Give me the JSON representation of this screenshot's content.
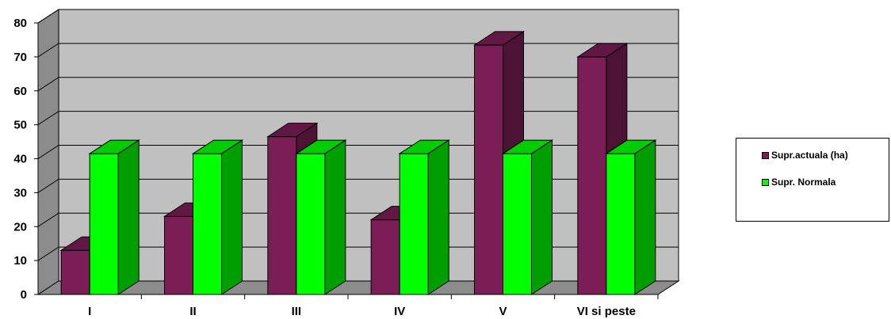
{
  "chart_data": {
    "type": "bar",
    "title": "",
    "xlabel": "",
    "ylabel": "",
    "categories": [
      "I",
      "II",
      "III",
      "IV",
      "V",
      "VI si peste"
    ],
    "series": [
      {
        "name": "Supr.actuala (ha)",
        "values": [
          13,
          23,
          46.5,
          22,
          73.5,
          70
        ],
        "color": "#7b1e55"
      },
      {
        "name": "Supr. Normala",
        "values": [
          41.5,
          41.5,
          41.5,
          41.5,
          41.5,
          41.5
        ],
        "color": "#00ff00"
      }
    ],
    "ylim": [
      0,
      80
    ],
    "yticks": [
      "0",
      "10",
      "20",
      "30",
      "40",
      "50",
      "60",
      "70",
      "80"
    ],
    "grid": true,
    "style": "3d-clustered-column",
    "legend_position": "right"
  }
}
